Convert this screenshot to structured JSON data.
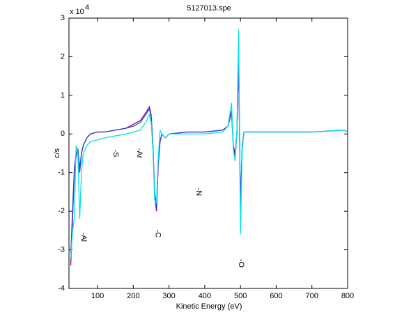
{
  "chart_data": {
    "type": "line",
    "title": "5127013.spe",
    "x_label": "Kinetic Energy (eV)",
    "y_label": "c/s",
    "y_multiplier": {
      "base": "x 10",
      "exponent": "4"
    },
    "xlim": [
      20,
      800
    ],
    "ylim": [
      -4,
      3
    ],
    "xticks": [
      100,
      200,
      300,
      400,
      500,
      600,
      700,
      800
    ],
    "yticks": [
      -4,
      -3,
      -2,
      -1,
      0,
      1,
      2,
      3
    ],
    "grid": false,
    "x": [
      25,
      30,
      35,
      40,
      45,
      50,
      55,
      60,
      70,
      80,
      100,
      120,
      150,
      180,
      200,
      220,
      235,
      245,
      250,
      255,
      260,
      265,
      270,
      275,
      280,
      290,
      300,
      350,
      400,
      450,
      465,
      475,
      480,
      485,
      490,
      495,
      500,
      505,
      510,
      520,
      600,
      700,
      790,
      800
    ],
    "series": [
      {
        "name": "purple",
        "color": "#7a0a8c",
        "values": [
          -3.4,
          -2.2,
          -1.0,
          -0.6,
          -0.4,
          -1.0,
          -0.5,
          -0.3,
          -0.1,
          0.0,
          0.05,
          0.05,
          0.1,
          0.15,
          0.25,
          0.35,
          0.55,
          0.7,
          0.5,
          -0.3,
          -1.6,
          -2.0,
          -0.8,
          -0.2,
          0.0,
          -0.1,
          0.0,
          0.05,
          0.05,
          0.1,
          0.2,
          0.6,
          -0.3,
          -0.6,
          0.0,
          1.9,
          -1.9,
          -0.3,
          0.05,
          0.05,
          0.05,
          0.05,
          0.1,
          0.05
        ]
      },
      {
        "name": "blue",
        "color": "#2a3fd8",
        "values": [
          -3.1,
          -2.0,
          -0.9,
          -0.5,
          -0.4,
          -0.9,
          -0.5,
          -0.3,
          -0.1,
          0.0,
          0.05,
          0.05,
          0.1,
          0.15,
          0.2,
          0.3,
          0.5,
          0.65,
          0.45,
          -0.3,
          -1.5,
          -1.9,
          -0.7,
          -0.2,
          0.0,
          -0.1,
          0.0,
          0.05,
          0.05,
          0.1,
          0.2,
          0.55,
          -0.3,
          -0.5,
          0.0,
          1.95,
          -1.95,
          -0.3,
          0.05,
          0.05,
          0.05,
          0.05,
          0.1,
          0.05
        ]
      },
      {
        "name": "cyan",
        "color": "#00e0ee",
        "values": [
          -3.2,
          -2.5,
          -2.2,
          -0.3,
          -0.5,
          -2.2,
          -1.0,
          -0.5,
          -0.3,
          -0.2,
          -0.15,
          -0.1,
          -0.05,
          0.0,
          0.05,
          0.1,
          0.3,
          0.5,
          0.3,
          -0.4,
          -1.7,
          -1.8,
          -0.6,
          0.1,
          0.0,
          -0.1,
          0.0,
          0.0,
          0.0,
          0.05,
          0.2,
          0.8,
          -0.4,
          -0.7,
          0.1,
          2.7,
          -2.6,
          -0.4,
          0.05,
          0.05,
          0.05,
          0.05,
          0.1,
          0.05
        ]
      }
    ],
    "annotations": [
      {
        "text": "-Al",
        "x": 61,
        "y": -2.67
      },
      {
        "text": "-S",
        "x": 150,
        "y": -0.5
      },
      {
        "text": "-Ar",
        "x": 217,
        "y": -0.5
      },
      {
        "text": "-C",
        "x": 268,
        "y": -2.58
      },
      {
        "text": "-N",
        "x": 383,
        "y": -1.5
      },
      {
        "text": "-O",
        "x": 501,
        "y": -3.35
      }
    ]
  }
}
